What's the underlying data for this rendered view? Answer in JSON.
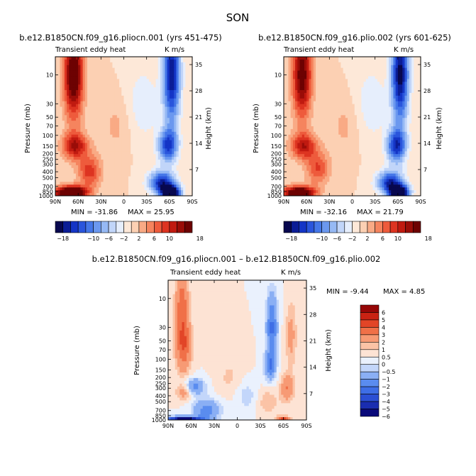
{
  "figure_title": "SON",
  "chart_data": [
    {
      "type": "heatmap",
      "title": "b.e12.B1850CN.f09_g16.pliocn.001 (yrs 451-475)",
      "left_label": "Transient eddy heat",
      "right_label": "K m/s",
      "ylabel": "Pressure (mb)",
      "ylabel_right": "Height (km)",
      "xticks": [
        "90N",
        "60N",
        "30N",
        "0",
        "30S",
        "60S",
        "90S"
      ],
      "yticks": [
        "10",
        "30",
        "50",
        "70",
        "100",
        "150",
        "200",
        "250",
        "300",
        "400",
        "500",
        "700",
        "850",
        "1000"
      ],
      "yticks_right": [
        "35",
        "28",
        "21",
        "14",
        "7"
      ],
      "xlim": [
        90,
        -90
      ],
      "ylim_mb": [
        1000,
        5
      ],
      "stats": {
        "min_label": "MIN = -31.86",
        "max_label": "MAX = 25.95",
        "min": -31.86,
        "max": 25.95
      },
      "colorbar_levels": [
        -18,
        -16,
        -14,
        -12,
        -10,
        -8,
        -6,
        -4,
        -2,
        0,
        2,
        4,
        6,
        8,
        10,
        12,
        14,
        16,
        18
      ],
      "colorbar_labels": [
        "-18",
        "-10",
        "-6",
        "-2",
        "2",
        "6",
        "10",
        "18"
      ],
      "field": {
        "blobs": [
          {
            "lat": 66,
            "p": 10,
            "sx": 9,
            "sy": 1.15,
            "amp": 18
          },
          {
            "lat": 64,
            "p": 150,
            "sx": 12,
            "sy": 0.35,
            "amp": 12
          },
          {
            "lat": 70,
            "p": 900,
            "sx": 14,
            "sy": 0.18,
            "amp": 26
          },
          {
            "lat": 45,
            "p": 400,
            "sx": 11,
            "sy": 0.45,
            "amp": 9
          },
          {
            "lat": -63,
            "p": 10,
            "sx": 8,
            "sy": 1.3,
            "amp": -18
          },
          {
            "lat": -58,
            "p": 150,
            "sx": 9,
            "sy": 0.45,
            "amp": -14
          },
          {
            "lat": -50,
            "p": 600,
            "sx": 12,
            "sy": 0.3,
            "amp": -16
          },
          {
            "lat": -62,
            "p": 900,
            "sx": 9,
            "sy": 0.2,
            "amp": -24
          },
          {
            "lat": -25,
            "p": 30,
            "sx": 15,
            "sy": 1.0,
            "amp": -3.5
          },
          {
            "lat": 10,
            "p": 70,
            "sx": 14,
            "sy": 0.8,
            "amp": 2.5
          }
        ]
      }
    },
    {
      "type": "heatmap",
      "title": "b.e12.B1850CN.f09_g16.plio.002 (yrs 601-625)",
      "left_label": "Transient eddy heat",
      "right_label": "K m/s",
      "ylabel": "Pressure (mb)",
      "ylabel_right": "Height (km)",
      "xticks": [
        "90N",
        "60N",
        "30N",
        "0",
        "30S",
        "60S",
        "90S"
      ],
      "yticks": [
        "10",
        "30",
        "50",
        "70",
        "100",
        "150",
        "200",
        "250",
        "300",
        "400",
        "500",
        "700",
        "850",
        "1000"
      ],
      "yticks_right": [
        "35",
        "28",
        "21",
        "14",
        "7"
      ],
      "xlim": [
        90,
        -90
      ],
      "ylim_mb": [
        1000,
        5
      ],
      "stats": {
        "min_label": "MIN = -32.16",
        "max_label": "MAX = 21.79",
        "min": -32.16,
        "max": 21.79
      },
      "colorbar_levels": [
        -18,
        -16,
        -14,
        -12,
        -10,
        -8,
        -6,
        -4,
        -2,
        0,
        2,
        4,
        6,
        8,
        10,
        12,
        14,
        16,
        18
      ],
      "colorbar_labels": [
        "-18",
        "-10",
        "-6",
        "-2",
        "2",
        "6",
        "10",
        "18"
      ],
      "field": {
        "blobs": [
          {
            "lat": 66,
            "p": 10,
            "sx": 9,
            "sy": 1.15,
            "amp": 16
          },
          {
            "lat": 64,
            "p": 150,
            "sx": 12,
            "sy": 0.35,
            "amp": 11
          },
          {
            "lat": 70,
            "p": 900,
            "sx": 14,
            "sy": 0.18,
            "amp": 22
          },
          {
            "lat": 45,
            "p": 350,
            "sx": 11,
            "sy": 0.45,
            "amp": 8
          },
          {
            "lat": -63,
            "p": 10,
            "sx": 8,
            "sy": 1.3,
            "amp": -19
          },
          {
            "lat": -58,
            "p": 150,
            "sx": 9,
            "sy": 0.45,
            "amp": -15
          },
          {
            "lat": -50,
            "p": 600,
            "sx": 12,
            "sy": 0.3,
            "amp": -16
          },
          {
            "lat": -62,
            "p": 900,
            "sx": 9,
            "sy": 0.2,
            "amp": -25
          },
          {
            "lat": -25,
            "p": 30,
            "sx": 15,
            "sy": 1.0,
            "amp": -3.5
          },
          {
            "lat": 10,
            "p": 70,
            "sx": 14,
            "sy": 0.8,
            "amp": 2.5
          }
        ]
      }
    },
    {
      "type": "heatmap",
      "title": "b.e12.B1850CN.f09_g16.pliocn.001 – b.e12.B1850CN.f09_g16.plio.002",
      "left_label": "Transient eddy heat",
      "right_label": "K m/s",
      "ylabel": "Pressure (mb)",
      "ylabel_right": "Height (km)",
      "xticks": [
        "90N",
        "60N",
        "30N",
        "0",
        "30S",
        "60S",
        "90S"
      ],
      "yticks": [
        "10",
        "30",
        "50",
        "70",
        "100",
        "150",
        "200",
        "250",
        "300",
        "400",
        "500",
        "700",
        "850",
        "1000"
      ],
      "yticks_right": [
        "35",
        "28",
        "21",
        "14",
        "7"
      ],
      "xlim": [
        90,
        -90
      ],
      "ylim_mb": [
        1000,
        5
      ],
      "stats": {
        "min_label": "MIN = -9.44",
        "max_label": "MAX = 4.85",
        "min": -9.44,
        "max": 4.85
      },
      "colorbar_levels": [
        -6,
        -5,
        -4,
        -3,
        -2,
        -1,
        -0.5,
        0,
        0.5,
        1,
        2,
        3,
        4,
        5,
        6
      ],
      "colorbar_labels": [
        "6",
        "5",
        "4",
        "3",
        "2",
        "1",
        "0.5",
        "0",
        "-0.5",
        "-1",
        "-2",
        "-3",
        "-4",
        "-5",
        "-6"
      ],
      "field": {
        "blobs": [
          {
            "lat": 72,
            "p": 12,
            "sx": 6,
            "sy": 0.9,
            "amp": 2.5
          },
          {
            "lat": 70,
            "p": 60,
            "sx": 7,
            "sy": 0.7,
            "amp": 2.8
          },
          {
            "lat": 55,
            "p": 280,
            "sx": 9,
            "sy": 0.22,
            "amp": -2.2
          },
          {
            "lat": 70,
            "p": 350,
            "sx": 7,
            "sy": 0.2,
            "amp": 1.5
          },
          {
            "lat": 40,
            "p": 700,
            "sx": 12,
            "sy": 0.3,
            "amp": -2.5
          },
          {
            "lat": 70,
            "p": 970,
            "sx": 16,
            "sy": 0.07,
            "amp": -7
          },
          {
            "lat": -45,
            "p": 30,
            "sx": 5,
            "sy": 0.9,
            "amp": -3.2
          },
          {
            "lat": -42,
            "p": 130,
            "sx": 5,
            "sy": 0.35,
            "amp": -2.5
          },
          {
            "lat": -70,
            "p": 40,
            "sx": 5,
            "sy": 0.9,
            "amp": 1.3
          },
          {
            "lat": -65,
            "p": 300,
            "sx": 6,
            "sy": 0.35,
            "amp": 2.0
          },
          {
            "lat": -40,
            "p": 500,
            "sx": 10,
            "sy": 0.35,
            "amp": 0.9
          },
          {
            "lat": -60,
            "p": 960,
            "sx": 6,
            "sy": 0.07,
            "amp": 3.5
          },
          {
            "lat": -12,
            "p": 400,
            "sx": 10,
            "sy": 0.4,
            "amp": -0.8
          },
          {
            "lat": 10,
            "p": 200,
            "sx": 12,
            "sy": 0.5,
            "amp": 0.6
          }
        ]
      }
    }
  ]
}
